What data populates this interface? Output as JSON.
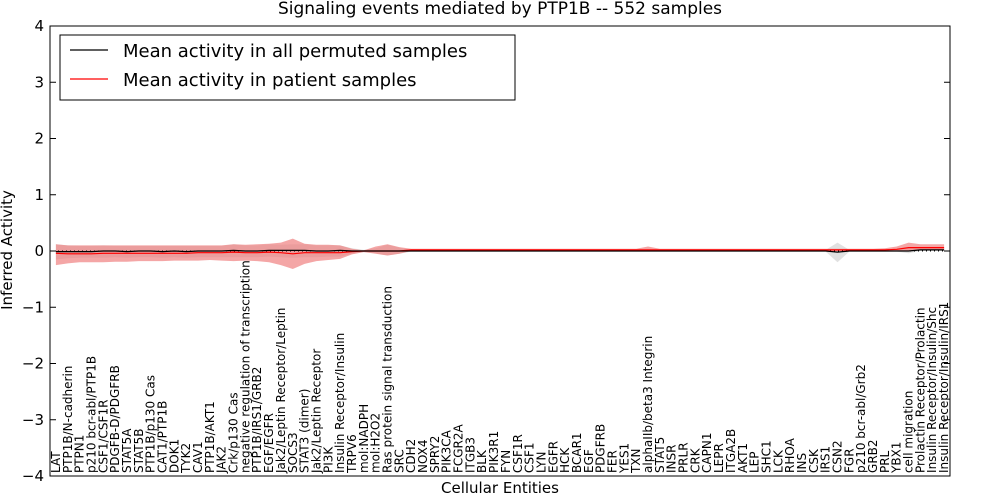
{
  "chart_data": {
    "type": "line",
    "title": "Signaling events mediated by PTP1B -- 552 samples",
    "xlabel": "Cellular Entities",
    "ylabel": "Inferred Activity",
    "ylim": [
      -4,
      4
    ],
    "yticks": [
      -4,
      -3,
      -2,
      -1,
      0,
      1,
      2,
      3,
      4
    ],
    "legend_position": "top-left",
    "categories": [
      "LAT",
      "PTP1B/N-cadherin",
      "PTPN1",
      "p210 bcr-abl/PTP1B",
      "CSF1/CSF1R",
      "PDGFB-D/PDGFRB",
      "STAT5A",
      "STAT5B",
      "PTP1B/p130 Cas",
      "CAT1/PTP1B",
      "DOK1",
      "TYK2",
      "CAV1",
      "PTP1B/AKT1",
      "JAK2",
      "Crk/p130 Cas",
      "negative regulation of transcription",
      "PTP1B/IRS1/GRB2",
      "EGF/EGFR",
      "Jak2/Leptin Receptor/Leptin",
      "SOCS3",
      "STAT3 (dimer)",
      "Jak2/Leptin Receptor",
      "PI3K",
      "Insulin Receptor/Insulin",
      "TRPV6",
      "mol:NADPH",
      "mol:H2O2",
      "Ras protein signal transduction",
      "SRC",
      "CDH2",
      "NOX4",
      "SPRY2",
      "PIK3CA",
      "FCGR2A",
      "ITGB3",
      "BLK",
      "PIK3R1",
      "FYN",
      "CSF1R",
      "CSF1",
      "LYN",
      "EGFR",
      "HCK",
      "BCAR1",
      "EGF",
      "PDGFRB",
      "FER",
      "YES1",
      "TXN",
      "alphaIIb/beta3 Integrin",
      "STAT5",
      "INSR",
      "PRLR",
      "CRK",
      "CAPN1",
      "LEPR",
      "ITGA2B",
      "AKT1",
      "LEP",
      "SHC1",
      "LCK",
      "RHOA",
      "INS",
      "CSK",
      "IRS1",
      "CSN2",
      "FGR",
      "p210 bcr-abl/Grb2",
      "GRB2",
      "PRL",
      "YBX1",
      "cell migration",
      "Prolactin Receptor/Prolactin",
      "Insulin Receptor/Insulin/Shc",
      "Insulin Receptor/Insulin/IRS1"
    ],
    "series": [
      {
        "name": "Mean activity in all permuted samples",
        "color": "#000000",
        "values": [
          -0.01,
          -0.01,
          -0.01,
          -0.01,
          0.0,
          0.0,
          -0.01,
          0.0,
          0.0,
          -0.01,
          0.0,
          -0.01,
          0.0,
          0.0,
          0.0,
          0.01,
          0.0,
          0.0,
          0.01,
          0.01,
          0.01,
          0.01,
          0.0,
          0.0,
          0.01,
          0.0,
          0.0,
          0.0,
          0.0,
          0.0,
          0.0,
          0.0,
          0.0,
          0.0,
          0.0,
          0.0,
          0.0,
          0.0,
          0.0,
          0.0,
          0.0,
          0.0,
          0.0,
          0.0,
          0.0,
          0.0,
          0.0,
          0.0,
          0.0,
          0.0,
          0.0,
          0.0,
          0.0,
          0.0,
          0.0,
          0.0,
          0.0,
          0.0,
          0.0,
          0.0,
          0.0,
          0.0,
          0.0,
          0.0,
          0.0,
          0.0,
          -0.02,
          0.0,
          0.0,
          0.0,
          0.0,
          0.0,
          0.0,
          0.02,
          0.02,
          0.02
        ],
        "band_lower": [
          -0.15,
          -0.13,
          -0.12,
          -0.12,
          -0.12,
          -0.11,
          -0.12,
          -0.11,
          -0.11,
          -0.12,
          -0.11,
          -0.12,
          -0.11,
          -0.11,
          -0.11,
          -0.11,
          -0.11,
          -0.11,
          -0.1,
          -0.11,
          -0.12,
          -0.11,
          -0.11,
          -0.1,
          -0.1,
          -0.05,
          -0.02,
          -0.04,
          -0.08,
          -0.05,
          -0.01,
          -0.01,
          -0.01,
          -0.01,
          -0.01,
          -0.01,
          -0.01,
          -0.01,
          -0.01,
          -0.01,
          -0.01,
          -0.01,
          -0.01,
          -0.01,
          -0.01,
          -0.01,
          -0.01,
          -0.01,
          -0.01,
          -0.01,
          -0.01,
          -0.01,
          -0.01,
          -0.01,
          -0.01,
          -0.01,
          -0.01,
          -0.01,
          -0.01,
          -0.01,
          -0.01,
          -0.01,
          -0.01,
          -0.01,
          -0.01,
          -0.01,
          -0.2,
          -0.01,
          -0.01,
          -0.01,
          -0.01,
          -0.01,
          -0.04,
          0.0,
          0.0,
          0.0
        ],
        "band_upper": [
          0.12,
          0.1,
          0.09,
          0.09,
          0.1,
          0.09,
          0.09,
          0.09,
          0.09,
          0.09,
          0.09,
          0.09,
          0.09,
          0.09,
          0.09,
          0.12,
          0.1,
          0.1,
          0.12,
          0.11,
          0.12,
          0.12,
          0.1,
          0.1,
          0.1,
          0.05,
          0.02,
          0.05,
          0.11,
          0.06,
          0.02,
          0.02,
          0.02,
          0.02,
          0.02,
          0.02,
          0.02,
          0.02,
          0.02,
          0.02,
          0.02,
          0.02,
          0.02,
          0.02,
          0.02,
          0.02,
          0.02,
          0.02,
          0.02,
          0.02,
          0.02,
          0.02,
          0.02,
          0.02,
          0.02,
          0.02,
          0.02,
          0.02,
          0.02,
          0.02,
          0.02,
          0.02,
          0.02,
          0.02,
          0.02,
          0.02,
          0.15,
          0.02,
          0.02,
          0.02,
          0.02,
          0.02,
          0.06,
          0.06,
          0.06,
          0.06
        ]
      },
      {
        "name": "Mean activity in patient samples",
        "color": "#ff0000",
        "values": [
          -0.04,
          -0.05,
          -0.05,
          -0.05,
          -0.04,
          -0.04,
          -0.04,
          -0.04,
          -0.04,
          -0.04,
          -0.04,
          -0.04,
          -0.03,
          -0.03,
          -0.03,
          -0.02,
          -0.03,
          -0.03,
          -0.02,
          -0.03,
          -0.05,
          -0.03,
          -0.03,
          -0.03,
          -0.03,
          -0.01,
          0.0,
          0.0,
          0.0,
          0.0,
          0.02,
          0.02,
          0.02,
          0.02,
          0.02,
          0.02,
          0.02,
          0.02,
          0.02,
          0.02,
          0.02,
          0.02,
          0.02,
          0.02,
          0.02,
          0.02,
          0.02,
          0.02,
          0.02,
          0.02,
          0.02,
          0.02,
          0.02,
          0.02,
          0.02,
          0.02,
          0.02,
          0.02,
          0.02,
          0.02,
          0.02,
          0.02,
          0.02,
          0.02,
          0.02,
          0.02,
          0.02,
          0.02,
          0.02,
          0.02,
          0.02,
          0.03,
          0.06,
          0.06,
          0.06,
          0.06
        ],
        "band_lower": [
          -0.25,
          -0.22,
          -0.2,
          -0.2,
          -0.2,
          -0.19,
          -0.19,
          -0.18,
          -0.18,
          -0.18,
          -0.17,
          -0.17,
          -0.17,
          -0.16,
          -0.17,
          -0.18,
          -0.17,
          -0.18,
          -0.2,
          -0.25,
          -0.32,
          -0.23,
          -0.18,
          -0.16,
          -0.14,
          -0.06,
          -0.02,
          -0.05,
          -0.08,
          -0.05,
          0.0,
          0.0,
          0.0,
          0.0,
          0.0,
          0.0,
          0.0,
          0.0,
          0.0,
          0.0,
          0.0,
          0.0,
          0.0,
          0.0,
          0.0,
          0.0,
          0.0,
          0.0,
          0.0,
          0.0,
          0.0,
          0.0,
          0.0,
          0.0,
          0.0,
          0.0,
          0.0,
          0.0,
          0.0,
          0.0,
          0.0,
          0.0,
          0.0,
          0.0,
          0.0,
          0.0,
          0.0,
          0.0,
          0.0,
          0.0,
          0.0,
          0.0,
          0.0,
          0.01,
          0.01,
          0.01
        ],
        "band_upper": [
          0.12,
          0.1,
          0.1,
          0.1,
          0.1,
          0.1,
          0.1,
          0.1,
          0.1,
          0.1,
          0.1,
          0.1,
          0.1,
          0.1,
          0.1,
          0.12,
          0.11,
          0.12,
          0.13,
          0.15,
          0.22,
          0.13,
          0.11,
          0.11,
          0.1,
          0.04,
          0.01,
          0.08,
          0.12,
          0.07,
          0.04,
          0.04,
          0.04,
          0.04,
          0.04,
          0.04,
          0.04,
          0.04,
          0.04,
          0.04,
          0.04,
          0.04,
          0.04,
          0.04,
          0.04,
          0.04,
          0.04,
          0.04,
          0.04,
          0.04,
          0.08,
          0.04,
          0.04,
          0.04,
          0.04,
          0.04,
          0.04,
          0.04,
          0.04,
          0.04,
          0.04,
          0.04,
          0.04,
          0.04,
          0.04,
          0.04,
          0.04,
          0.04,
          0.04,
          0.04,
          0.05,
          0.08,
          0.15,
          0.12,
          0.12,
          0.12
        ]
      }
    ],
    "reference_line": {
      "y": 0,
      "style": "dotted"
    }
  }
}
